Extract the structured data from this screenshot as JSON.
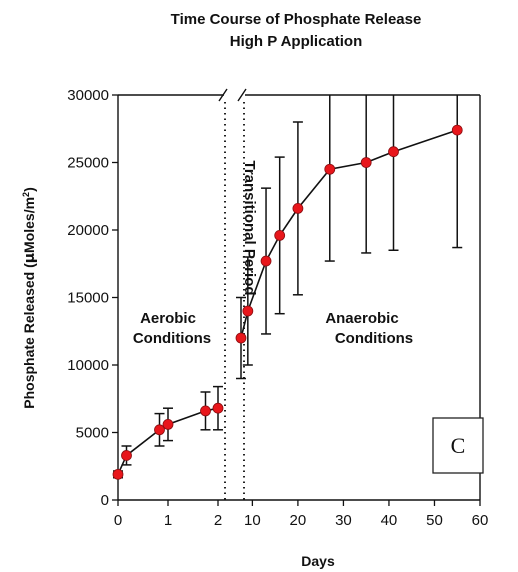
{
  "chart_data": {
    "type": "scatter",
    "title": [
      "Time Course of Phosphate Release",
      "High P Application"
    ],
    "xlabel": "Days",
    "ylabel_parts": [
      "Phosphate Released (",
      "μ",
      "Moles/m",
      "2",
      ")"
    ],
    "panel_letter": "C",
    "y_ticks": [
      0,
      5000,
      10000,
      15000,
      20000,
      25000,
      30000
    ],
    "ylim": [
      0,
      30000
    ],
    "x_ticks_left": [
      0,
      1,
      2
    ],
    "x_ticks_right": [
      10,
      20,
      30,
      40,
      50,
      60
    ],
    "xlim_left": [
      0,
      2.2
    ],
    "xlim_right": [
      7.5,
      60
    ],
    "regions": {
      "aerobic": [
        "Aerobic",
        "Conditions"
      ],
      "transitional": "Transitional Period",
      "anaerobic": [
        "Anaerobic",
        "Conditions"
      ]
    },
    "segment1": [
      {
        "x": 0.0,
        "y": 1900,
        "err": 250
      },
      {
        "x": 0.17,
        "y": 3300,
        "err": 700
      },
      {
        "x": 0.83,
        "y": 5200,
        "err": 1200
      },
      {
        "x": 1.0,
        "y": 5600,
        "err": 1200
      },
      {
        "x": 1.75,
        "y": 6600,
        "err": 1400
      },
      {
        "x": 2.0,
        "y": 6800,
        "err": 1600
      }
    ],
    "segment2": [
      {
        "x": 7.5,
        "y": 12000,
        "err": 3000
      },
      {
        "x": 9,
        "y": 14000,
        "err": 4000
      },
      {
        "x": 13,
        "y": 17700,
        "err": 5400
      },
      {
        "x": 16,
        "y": 19600,
        "err": 5800
      },
      {
        "x": 20,
        "y": 21600,
        "err": 6400
      },
      {
        "x": 27,
        "y": 24500,
        "err": 6800
      },
      {
        "x": 35,
        "y": 25000,
        "err": 6700
      },
      {
        "x": 41,
        "y": 25800,
        "err": 7300
      },
      {
        "x": 55,
        "y": 27400,
        "err": 8700
      }
    ],
    "marker_color": "#e8161b",
    "grid": false,
    "legend": "none"
  }
}
